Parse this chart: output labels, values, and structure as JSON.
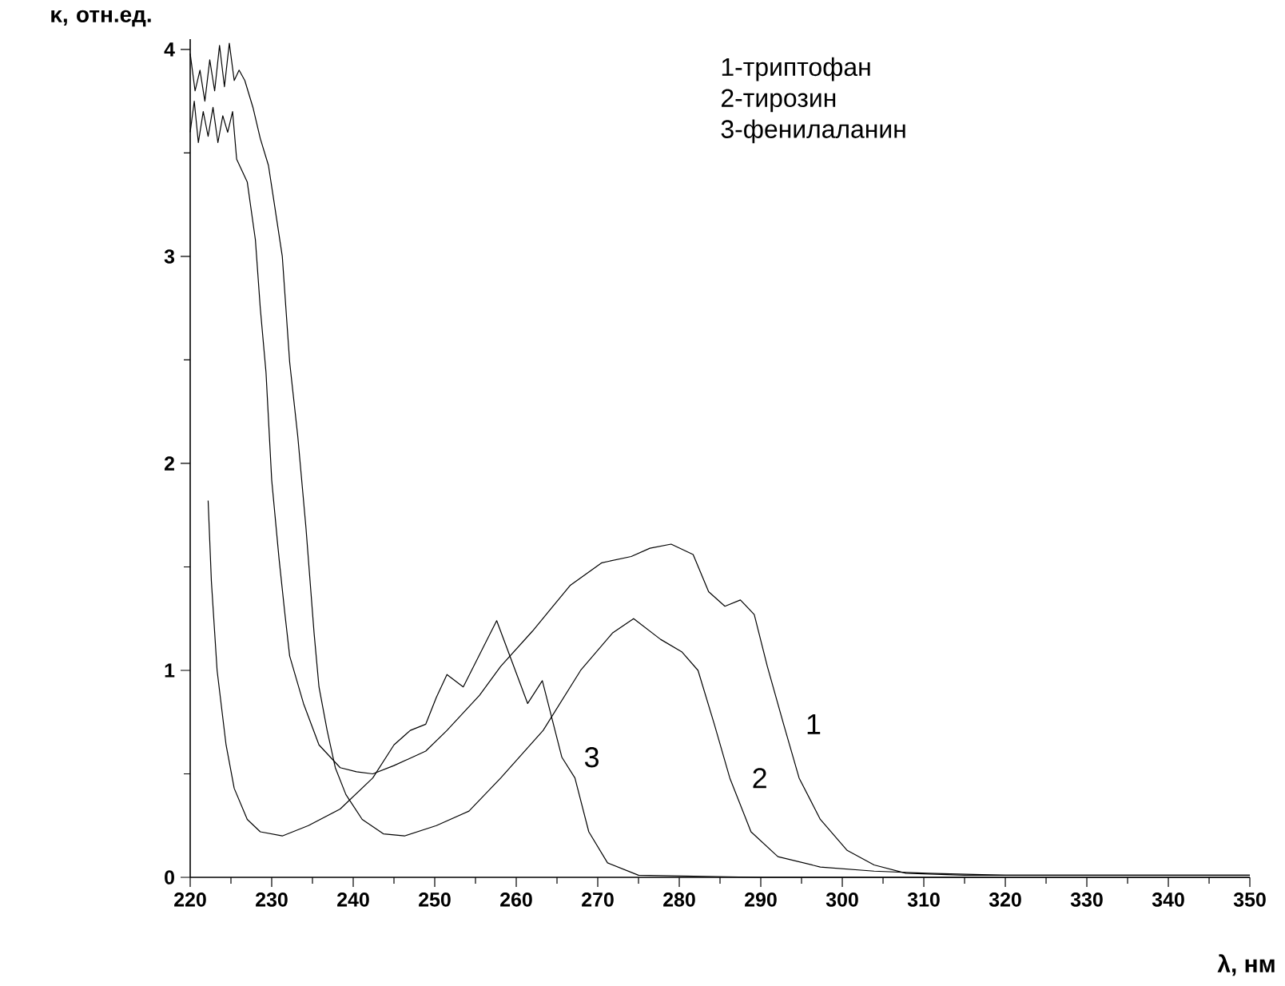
{
  "chart_data": {
    "type": "line",
    "xlabel": "λ, нм",
    "ylabel": "κ, отн.ед.",
    "xlim": [
      220,
      350
    ],
    "ylim": [
      0,
      4.05
    ],
    "xticks": [
      220,
      230,
      240,
      250,
      260,
      270,
      280,
      290,
      300,
      310,
      320,
      330,
      340,
      350
    ],
    "yticks": [
      0,
      1,
      2,
      3,
      4
    ],
    "grid": false,
    "legend": false,
    "marker": "none",
    "line_style": "solid",
    "annotations": [
      "1-триптофан",
      "2-тирозин",
      "3-фенилаланин"
    ],
    "series": [
      {
        "name": "1",
        "color": "#000000",
        "x": [
          220,
          220.5,
          221,
          221.6,
          222.2,
          222.8,
          223.4,
          224,
          224.6,
          225.2,
          225.7,
          227,
          228,
          228.6,
          229.3,
          230,
          230.9,
          231.6,
          232.2,
          233.9,
          235.8,
          238.4,
          240.4,
          242.4,
          245,
          248.9,
          251.5,
          255.5,
          258.1,
          262,
          266.6,
          270.5,
          274.1,
          276.4,
          279,
          281.7,
          283.6,
          285.6,
          287.5,
          289.2,
          290.8,
          292.8,
          294.7,
          297.3,
          300.6,
          303.9,
          307.8,
          315,
          325,
          335,
          350
        ],
        "values": [
          3.6,
          3.75,
          3.55,
          3.7,
          3.58,
          3.72,
          3.55,
          3.68,
          3.6,
          3.7,
          3.47,
          3.36,
          3.08,
          2.75,
          2.44,
          1.92,
          1.54,
          1.28,
          1.07,
          0.84,
          0.64,
          0.53,
          0.51,
          0.5,
          0.54,
          0.61,
          0.71,
          0.88,
          1.02,
          1.19,
          1.41,
          1.52,
          1.55,
          1.59,
          1.61,
          1.56,
          1.38,
          1.31,
          1.34,
          1.27,
          1.02,
          0.74,
          0.48,
          0.28,
          0.13,
          0.06,
          0.02,
          0.01,
          0.01,
          0.01,
          0.01
        ]
      },
      {
        "name": "2",
        "color": "#000000",
        "x": [
          220,
          220.6,
          221.2,
          221.8,
          222.4,
          223,
          223.6,
          224.2,
          224.8,
          225.4,
          226,
          226.7,
          227.7,
          228.6,
          229.6,
          230.3,
          231.3,
          232.2,
          233.2,
          234.2,
          235.2,
          235.8,
          236.8,
          237.8,
          239.1,
          241.1,
          243.7,
          246.3,
          250.2,
          254.2,
          258.1,
          263.3,
          267.9,
          271.8,
          274.4,
          277.7,
          280.3,
          282.3,
          284.3,
          286.2,
          288.8,
          292.1,
          297.3,
          303.9,
          310.4,
          320,
          335,
          350
        ],
        "values": [
          3.98,
          3.8,
          3.9,
          3.75,
          3.95,
          3.8,
          4.02,
          3.82,
          4.03,
          3.85,
          3.9,
          3.85,
          3.72,
          3.57,
          3.44,
          3.26,
          3.0,
          2.49,
          2.13,
          1.69,
          1.18,
          0.92,
          0.71,
          0.53,
          0.4,
          0.28,
          0.21,
          0.2,
          0.25,
          0.32,
          0.48,
          0.71,
          1.0,
          1.18,
          1.25,
          1.15,
          1.09,
          1.0,
          0.74,
          0.48,
          0.22,
          0.1,
          0.05,
          0.03,
          0.02,
          0.01,
          0.01,
          0.01
        ]
      },
      {
        "name": "3",
        "color": "#000000",
        "x": [
          222.2,
          222.6,
          223.3,
          224.4,
          225.4,
          227,
          228.6,
          231.3,
          234.5,
          238.4,
          242.4,
          245,
          247,
          248.9,
          250.2,
          251.5,
          253.5,
          257.6,
          261.4,
          263.2,
          265.6,
          267.2,
          268.9,
          271.2,
          275,
          290,
          310,
          330,
          350
        ],
        "values": [
          1.82,
          1.43,
          1.0,
          0.64,
          0.43,
          0.28,
          0.22,
          0.2,
          0.25,
          0.33,
          0.48,
          0.64,
          0.71,
          0.74,
          0.87,
          0.98,
          0.92,
          1.24,
          0.84,
          0.95,
          0.58,
          0.48,
          0.22,
          0.07,
          0.01,
          0.0,
          0.0,
          0.0,
          0.0
        ]
      }
    ]
  }
}
